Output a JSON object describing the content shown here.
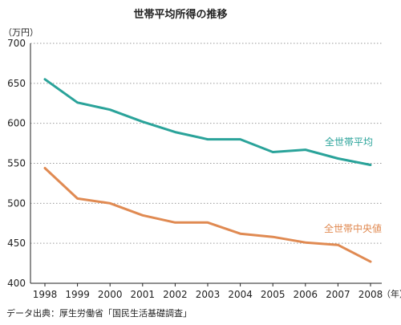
{
  "chart_data": {
    "type": "line",
    "title": "世帯平均所得の推移",
    "y_unit": "（万円）",
    "x_unit": "（年）",
    "x": [
      "1998",
      "1999",
      "2000",
      "2001",
      "2002",
      "2003",
      "2004",
      "2005",
      "2006",
      "2007",
      "2008"
    ],
    "ylim": [
      400,
      700
    ],
    "yticks": [
      400,
      450,
      500,
      550,
      600,
      650,
      700
    ],
    "grid": true,
    "series": [
      {
        "name": "全世帯平均",
        "color": "#2aa39a",
        "values": [
          655,
          626,
          617,
          602,
          589,
          580,
          580,
          564,
          567,
          556,
          548
        ]
      },
      {
        "name": "全世帯中央値",
        "color": "#e08a52",
        "values": [
          544,
          506,
          500,
          485,
          476,
          476,
          462,
          458,
          451,
          448,
          427
        ]
      }
    ],
    "source": "データ出典：厚生労働省「国民生活基礎調査」"
  }
}
